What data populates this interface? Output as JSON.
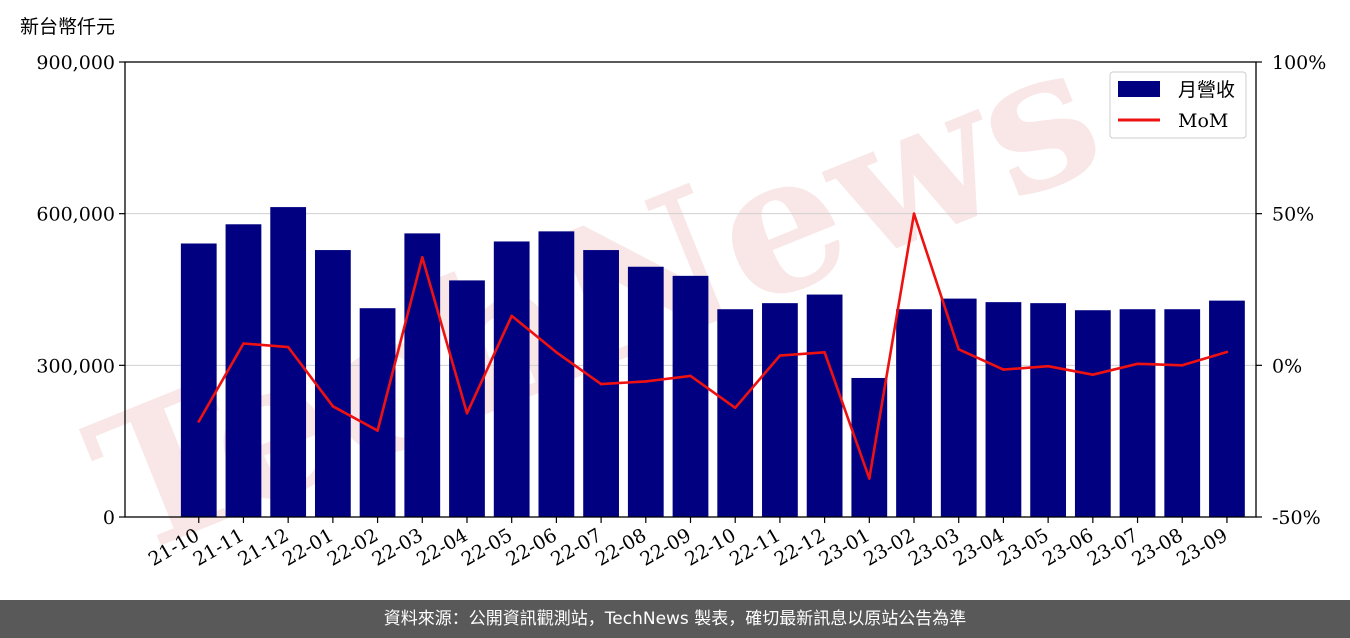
{
  "chart_data": {
    "type": "bar",
    "title": "",
    "ylabel": "新台幣仟元",
    "xlabel": "",
    "categories": [
      "21-10",
      "21-11",
      "21-12",
      "22-01",
      "22-02",
      "22-03",
      "22-04",
      "22-05",
      "22-06",
      "22-07",
      "22-08",
      "22-09",
      "22-10",
      "22-11",
      "22-12",
      "23-01",
      "23-02",
      "23-03",
      "23-04",
      "23-05",
      "23-06",
      "23-07",
      "23-08",
      "23-09"
    ],
    "series": [
      {
        "name": "月營收",
        "type": "bar",
        "axis": "left",
        "color": "#000080",
        "values": [
          541000,
          579000,
          613000,
          528000,
          413000,
          561000,
          468000,
          545000,
          565000,
          528000,
          495000,
          477000,
          411000,
          423000,
          440000,
          275000,
          411000,
          432000,
          425000,
          423000,
          409000,
          411000,
          411000,
          428000
        ]
      },
      {
        "name": "MoM",
        "type": "line",
        "axis": "right",
        "color": "#ee1111",
        "values": [
          -18.5,
          7.2,
          6.0,
          -13.5,
          -21.5,
          35.6,
          -15.8,
          16.3,
          4.3,
          -6.2,
          -5.3,
          -3.5,
          -14.0,
          3.2,
          4.3,
          -37.3,
          50.0,
          5.3,
          -1.4,
          -0.3,
          -3.1,
          0.5,
          0.0,
          4.4
        ]
      }
    ],
    "ylim": [
      0,
      900000
    ],
    "y_ticks": [
      "0",
      "300,000",
      "600,000",
      "900,000"
    ],
    "y_tick_values": [
      0,
      300000,
      600000,
      900000
    ],
    "y2lim": [
      -50,
      100
    ],
    "y2_ticks": [
      "-50%",
      "0%",
      "50%",
      "100%"
    ],
    "y2_tick_values": [
      -50,
      0,
      50,
      100
    ],
    "grid": "horizontal",
    "legend_position": "top-right",
    "watermark": "TechNews"
  },
  "footer": {
    "text": "資料來源：公開資訊觀測站，TechNews 製表，確切最新訊息以原站公告為準"
  }
}
